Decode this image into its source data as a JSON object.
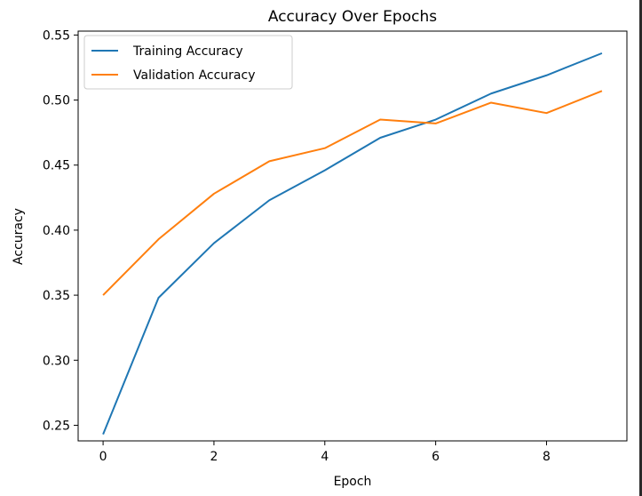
{
  "chart_data": {
    "type": "line",
    "title": "Accuracy Over Epochs",
    "xlabel": "Epoch",
    "ylabel": "Accuracy",
    "xlim": [
      -0.45,
      9.45
    ],
    "ylim": [
      0.238,
      0.553
    ],
    "xticks": [
      0,
      2,
      4,
      6,
      8
    ],
    "yticks": [
      0.25,
      0.3,
      0.35,
      0.4,
      0.45,
      0.5,
      0.55
    ],
    "grid": false,
    "legend_position": "top-left",
    "x": [
      0,
      1,
      2,
      3,
      4,
      5,
      6,
      7,
      8,
      9
    ],
    "series": [
      {
        "name": "Training Accuracy",
        "color": "#1f77b4",
        "values": [
          0.243,
          0.348,
          0.39,
          0.423,
          0.446,
          0.471,
          0.485,
          0.505,
          0.519,
          0.536
        ]
      },
      {
        "name": "Validation Accuracy",
        "color": "#ff7f0e",
        "values": [
          0.35,
          0.393,
          0.428,
          0.453,
          0.463,
          0.485,
          0.482,
          0.498,
          0.49,
          0.507
        ]
      }
    ]
  }
}
